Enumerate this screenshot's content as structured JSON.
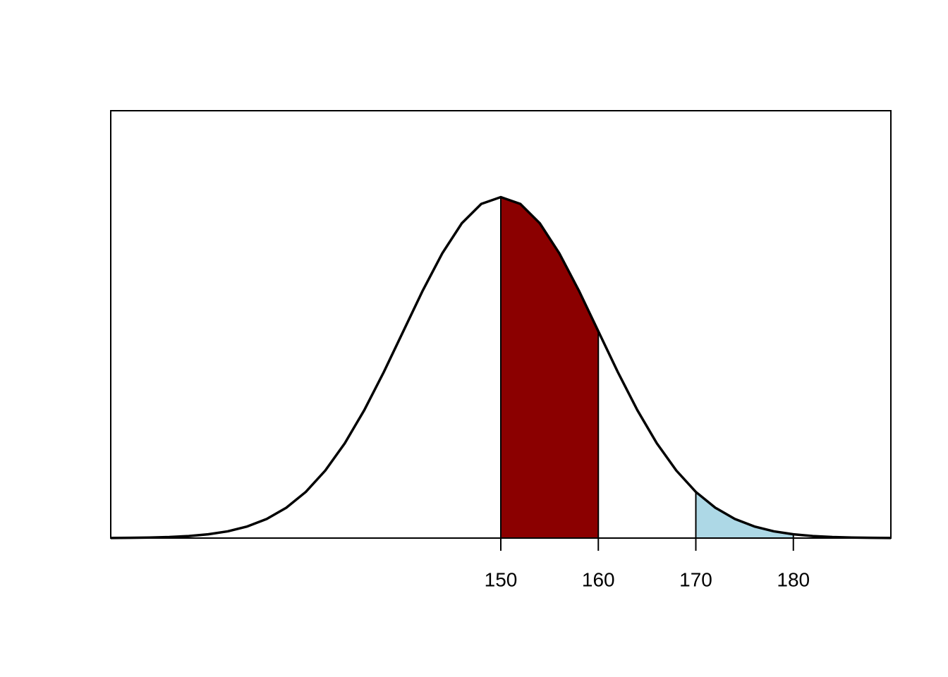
{
  "chart_data": {
    "type": "line",
    "x": [
      110,
      112,
      114,
      116,
      118,
      120,
      122,
      124,
      126,
      128,
      130,
      132,
      134,
      136,
      138,
      140,
      142,
      144,
      146,
      148,
      150,
      152,
      154,
      156,
      158,
      160,
      162,
      164,
      166,
      168,
      170,
      172,
      174,
      176,
      178,
      180,
      182,
      184,
      186,
      188,
      190
    ],
    "values": [
      1e-05,
      3e-05,
      6e-05,
      0.00012,
      0.00024,
      0.00044,
      0.00079,
      0.00136,
      0.00224,
      0.00355,
      0.0054,
      0.0079,
      0.01109,
      0.01497,
      0.01942,
      0.0242,
      0.02897,
      0.03332,
      0.03683,
      0.0391,
      0.03989,
      0.0391,
      0.03683,
      0.03332,
      0.02897,
      0.0242,
      0.01942,
      0.01497,
      0.01109,
      0.0079,
      0.0054,
      0.00355,
      0.00224,
      0.00136,
      0.00079,
      0.00044,
      0.00024,
      0.00012,
      6e-05,
      3e-05,
      1e-05
    ],
    "color": "#000000",
    "shaded": [
      {
        "from": 150,
        "to": 160,
        "color": "#8b0000"
      },
      {
        "from": 170,
        "to": 180,
        "color": "#add8e6"
      }
    ],
    "xlim": [
      110,
      190
    ],
    "ylim": [
      0,
      0.05
    ],
    "xticks": [
      150,
      160,
      170,
      180
    ]
  }
}
